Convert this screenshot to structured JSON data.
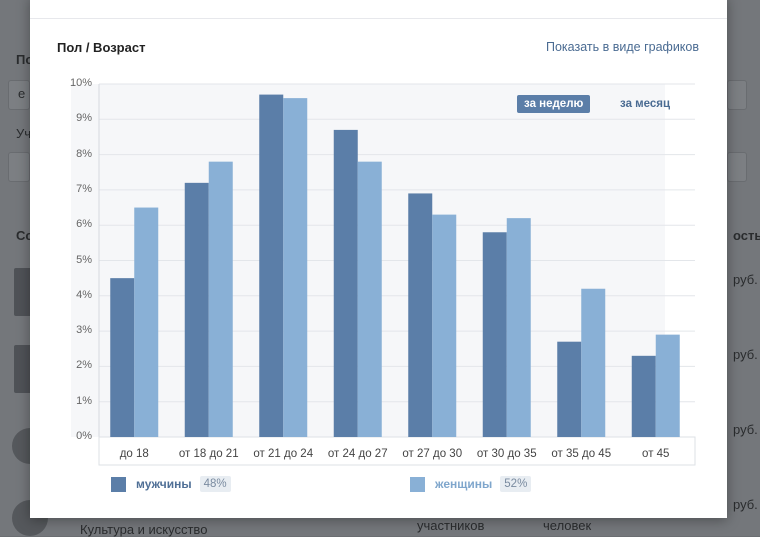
{
  "header": {
    "title": "Пол / Возраст",
    "view_toggle": "Показать в виде графиков"
  },
  "period": {
    "active": "за неделю",
    "inactive": "за месяц"
  },
  "legend": [
    {
      "label": "мужчины",
      "percent": "48%",
      "color": "#5b7ea8"
    },
    {
      "label": "женщины",
      "percent": "52%",
      "color": "#89b0d6"
    }
  ],
  "background": {
    "letters": [
      "По",
      "е",
      "Уч",
      "Со",
      "ость"
    ],
    "prices": [
      "руб.",
      "руб.",
      "руб.",
      "руб."
    ],
    "bottom_texts": [
      "Культура и искусство",
      "участников",
      "человек"
    ]
  },
  "chart_data": {
    "type": "bar",
    "title": "Пол / Возраст",
    "categories": [
      "до 18",
      "от 18 до 21",
      "от 21 до 24",
      "от 24 до 27",
      "от 27 до 30",
      "от 30 до 35",
      "от 35 до 45",
      "от 45"
    ],
    "series": [
      {
        "name": "мужчины",
        "values": [
          4.5,
          7.2,
          9.7,
          8.7,
          6.9,
          5.8,
          2.7,
          2.3
        ]
      },
      {
        "name": "женщины",
        "values": [
          6.5,
          7.8,
          9.6,
          7.8,
          6.3,
          6.2,
          4.2,
          2.9
        ]
      }
    ],
    "ylim": [
      0,
      10
    ],
    "yticks": [
      "0%",
      "1%",
      "2%",
      "3%",
      "4%",
      "5%",
      "6%",
      "7%",
      "8%",
      "9%",
      "10%"
    ],
    "grid": true,
    "legend_position": "bottom"
  }
}
